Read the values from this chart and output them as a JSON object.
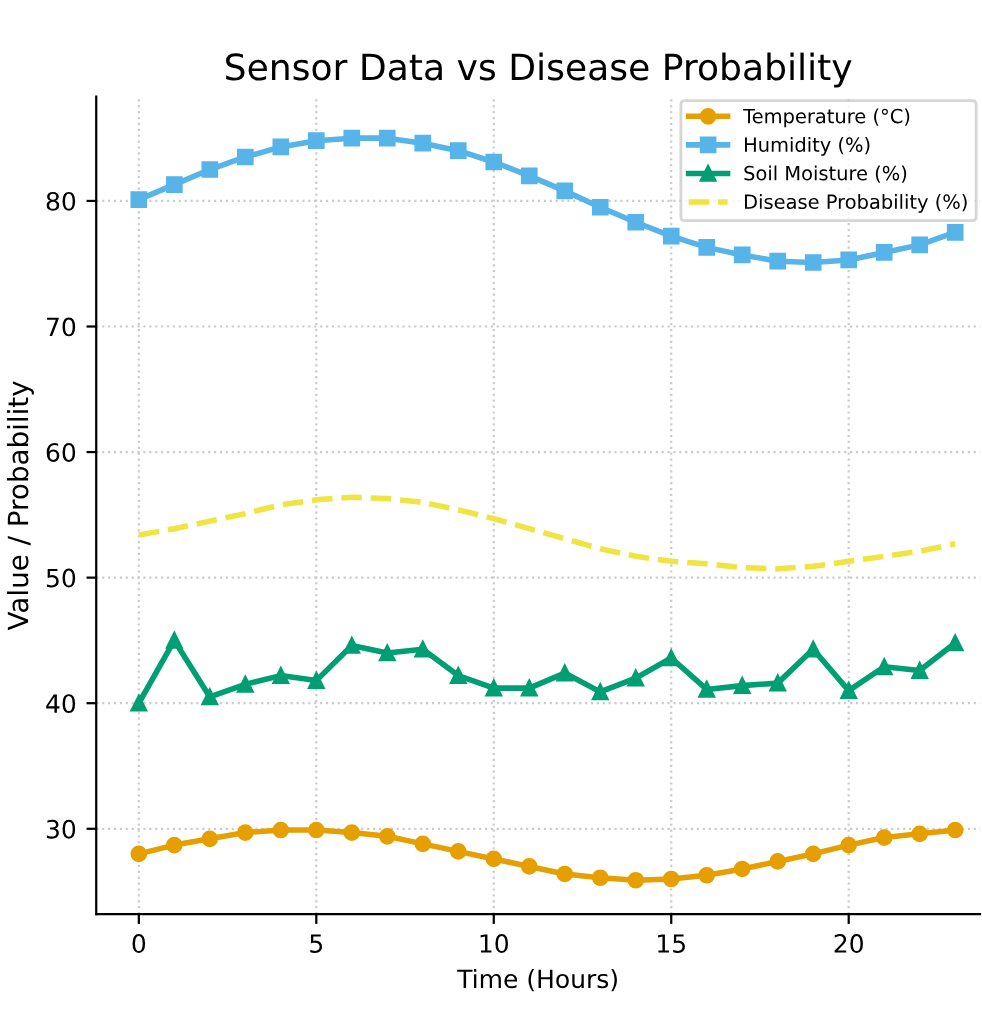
{
  "chart_data": {
    "type": "line",
    "title": "Sensor Data vs Disease Probability",
    "xlabel": "Time (Hours)",
    "ylabel": "Value / Probability",
    "x": [
      0,
      1,
      2,
      3,
      4,
      5,
      6,
      7,
      8,
      9,
      10,
      11,
      12,
      13,
      14,
      15,
      16,
      17,
      18,
      19,
      20,
      21,
      22,
      23
    ],
    "series": [
      {
        "name": "Temperature (°C)",
        "color": "#e69f00",
        "marker": "circle",
        "line_style": "solid",
        "values": [
          28.0,
          28.7,
          29.2,
          29.7,
          29.9,
          29.9,
          29.7,
          29.4,
          28.8,
          28.2,
          27.6,
          27.0,
          26.4,
          26.1,
          25.9,
          26.0,
          26.3,
          26.8,
          27.4,
          28.0,
          28.7,
          29.3,
          29.6,
          29.9
        ]
      },
      {
        "name": "Humidity (%)",
        "color": "#56b4e9",
        "marker": "square",
        "line_style": "solid",
        "values": [
          80.1,
          81.3,
          82.5,
          83.5,
          84.3,
          84.8,
          85.0,
          85.0,
          84.6,
          84.0,
          83.1,
          82.0,
          80.8,
          79.5,
          78.3,
          77.2,
          76.3,
          75.7,
          75.2,
          75.1,
          75.3,
          75.9,
          76.5,
          77.5
        ]
      },
      {
        "name": "Soil Moisture (%)",
        "color": "#009e73",
        "marker": "triangle",
        "line_style": "solid",
        "values": [
          40.0,
          45.0,
          40.5,
          41.5,
          42.2,
          41.8,
          44.6,
          44.0,
          44.3,
          42.2,
          41.2,
          41.2,
          42.4,
          40.9,
          42.0,
          43.6,
          41.1,
          41.4,
          41.6,
          44.3,
          41.0,
          42.9,
          42.6,
          44.8
        ]
      },
      {
        "name": "Disease Probability (%)",
        "color": "#f0e442",
        "marker": "none",
        "line_style": "dashed",
        "values": [
          53.4,
          53.9,
          54.5,
          55.1,
          55.8,
          56.2,
          56.4,
          56.3,
          56.0,
          55.4,
          54.7,
          53.9,
          53.1,
          52.3,
          51.7,
          51.3,
          51.1,
          50.8,
          50.7,
          50.9,
          51.3,
          51.7,
          52.1,
          52.7
        ]
      }
    ],
    "xlim": [
      -1.2,
      23.7
    ],
    "ylim": [
      23.2,
      88.3
    ],
    "xticks": [
      0,
      5,
      10,
      15,
      20
    ],
    "yticks": [
      30,
      40,
      50,
      60,
      70,
      80
    ],
    "grid": true,
    "legend": "top right"
  }
}
